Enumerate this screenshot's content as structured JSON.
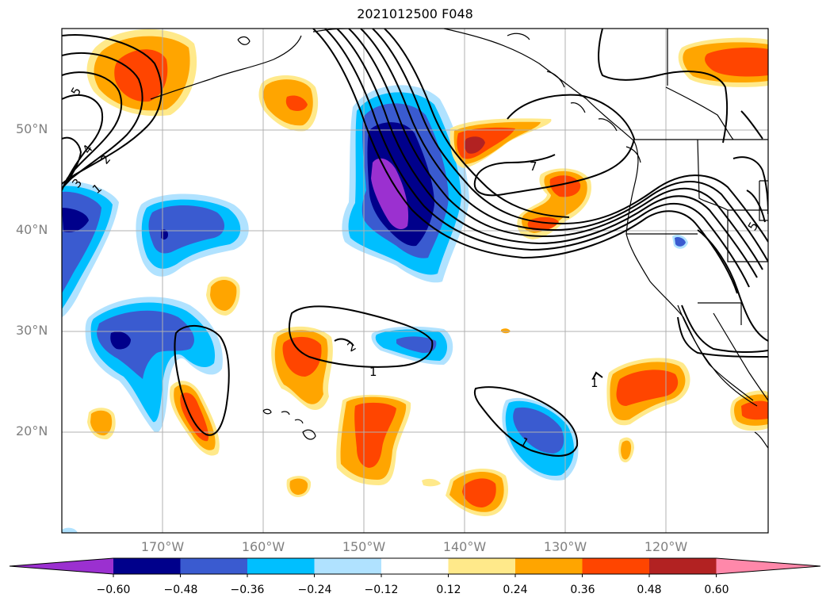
{
  "title": "2021012500 F048",
  "lat_labels": [
    "50°N",
    "40°N",
    "30°N",
    "20°N"
  ],
  "lon_labels": [
    "170°W",
    "160°W",
    "150°W",
    "140°W",
    "130°W",
    "120°W"
  ],
  "contour_labels": [
    "5",
    "4",
    "3",
    "2",
    "1",
    "7",
    "5",
    "2",
    "1",
    "1",
    "1"
  ],
  "colorbar": {
    "tick_labels": [
      "−0.60",
      "−0.48",
      "−0.36",
      "−0.24",
      "−0.12",
      "0.12",
      "0.24",
      "0.36",
      "0.48",
      "0.60"
    ],
    "colors": [
      "#9b30d0",
      "#00008b",
      "#3a5bd0",
      "#00bfff",
      "#b0e2ff",
      "#ffffff",
      "#ffe98a",
      "#ffa500",
      "#ff4500",
      "#b22222",
      "#ff88aa"
    ]
  },
  "palette": {
    "neg_extreme": "#9b30d0",
    "neg_strong": "#00008b",
    "neg_mid": "#3a5bd0",
    "neg_light": "#00bfff",
    "neg_faint": "#b0e2ff",
    "pos_faint": "#ffe98a",
    "pos_light": "#ffa500",
    "pos_mid": "#ff4500",
    "pos_strong": "#b22222",
    "grid": "#b0b0b0",
    "coast": "#000000"
  }
}
